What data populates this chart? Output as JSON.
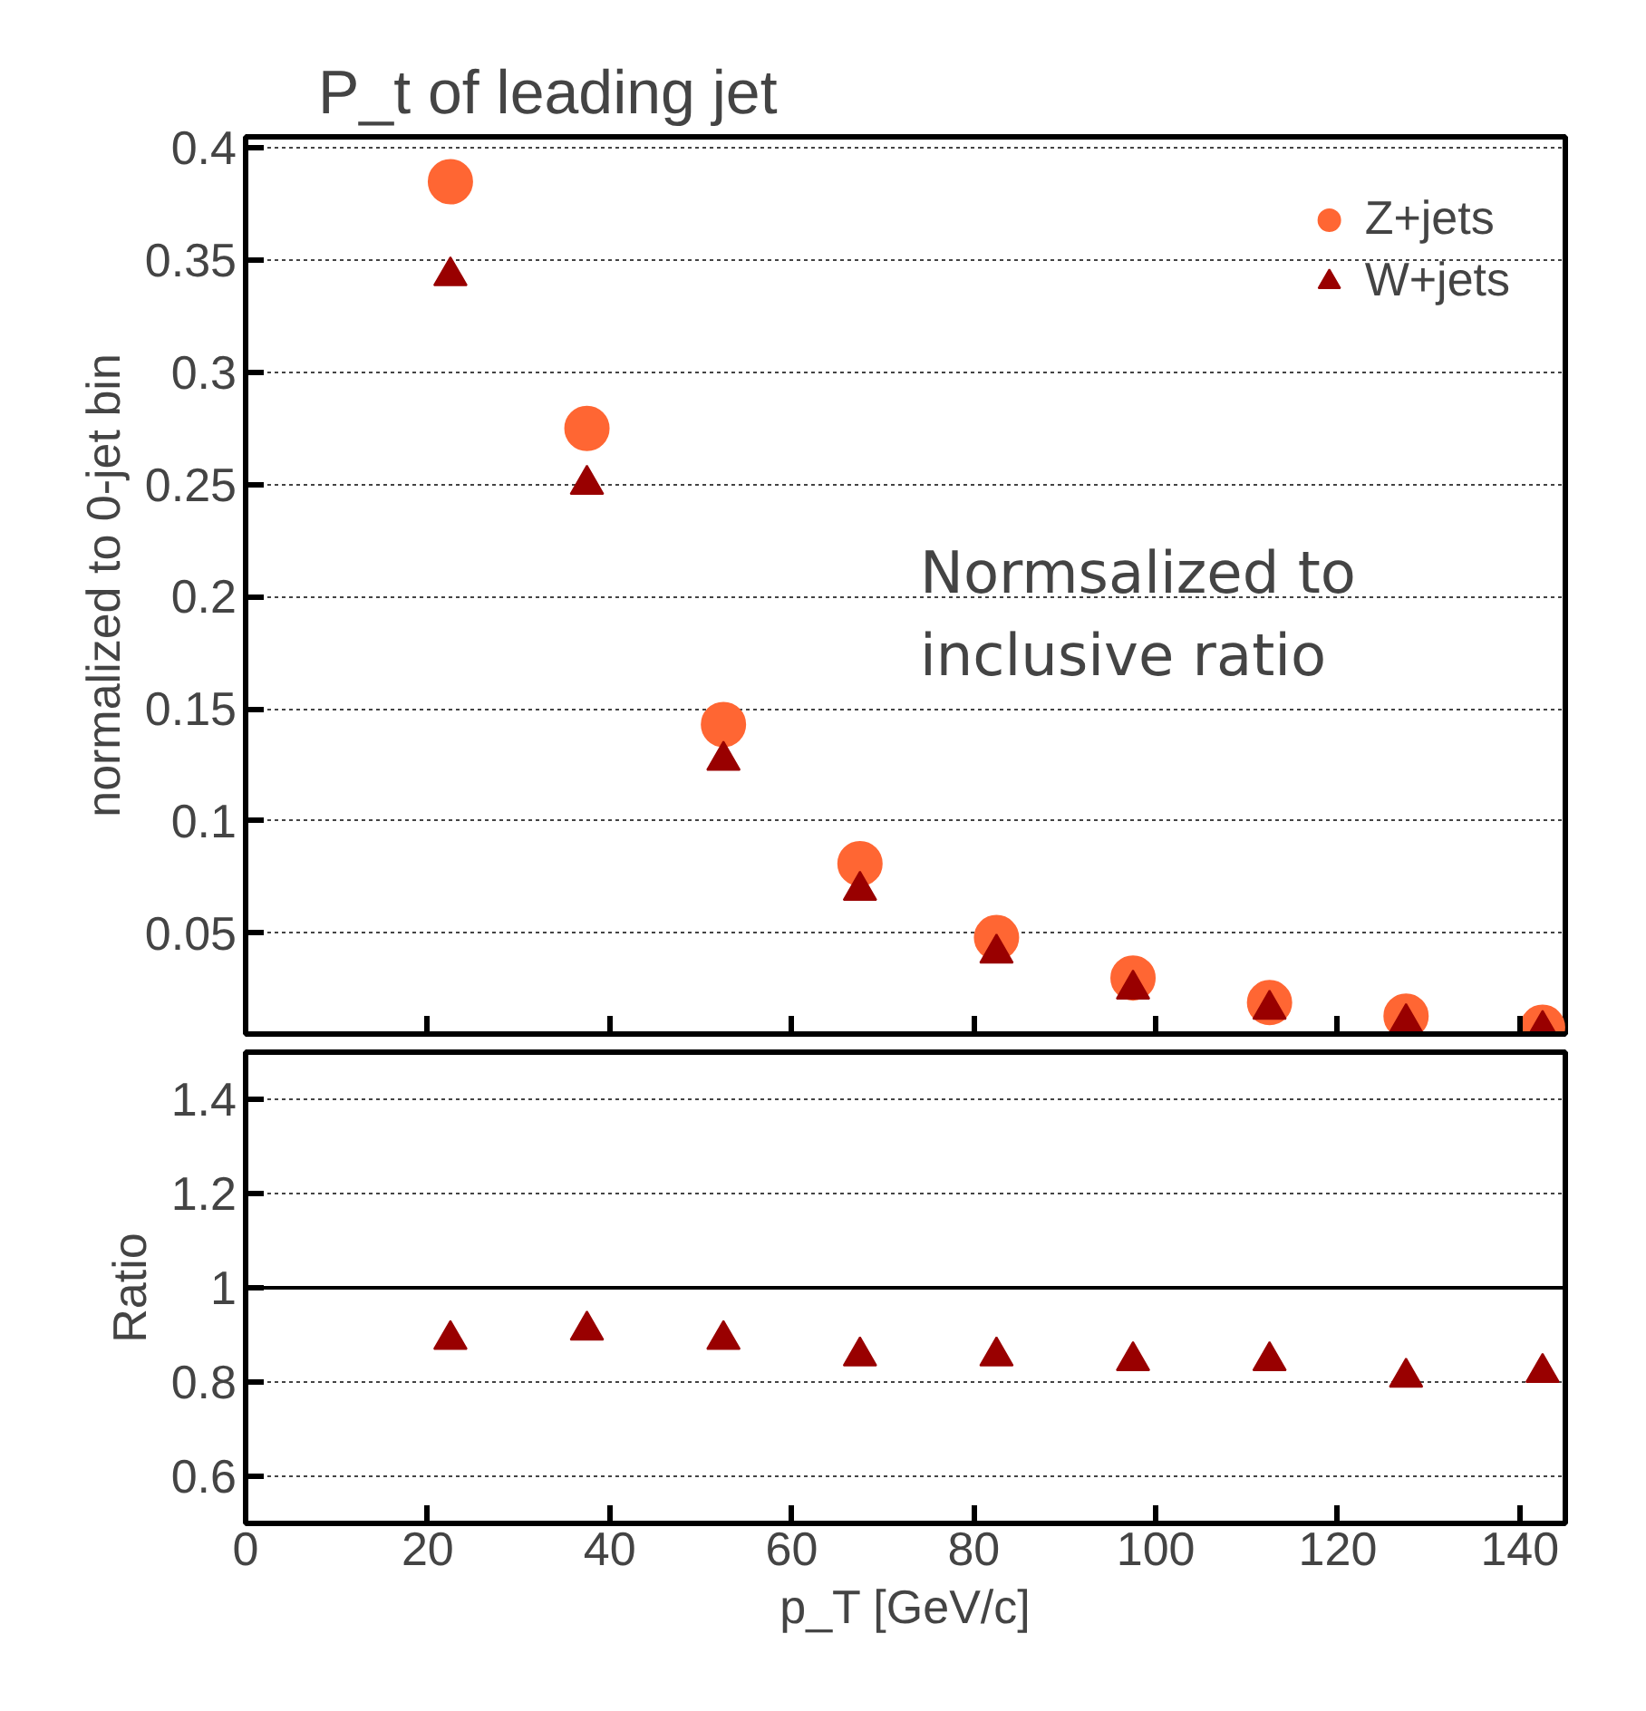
{
  "chart_data": [
    {
      "type": "scatter",
      "title": "P_t of leading jet",
      "ylabel": "normalized to 0-jet bin",
      "x": [
        22.5,
        37.5,
        52.5,
        67.5,
        82.5,
        97.5,
        112.5,
        127.5,
        142.5
      ],
      "series": [
        {
          "name": "Z+jets",
          "color": "#ff6633",
          "marker": "circle",
          "values": [
            0.385,
            0.275,
            0.143,
            0.081,
            0.048,
            0.03,
            0.019,
            0.013,
            0.008
          ]
        },
        {
          "name": "W+jets",
          "color": "#990000",
          "marker": "triangle",
          "values": [
            0.343,
            0.25,
            0.127,
            0.069,
            0.041,
            0.025,
            0.016,
            0.01,
            0.007
          ]
        }
      ],
      "xlim": [
        0,
        145
      ],
      "xticks": [
        0,
        20,
        40,
        60,
        80,
        100,
        120,
        140
      ],
      "ylim": [
        0.005,
        0.405
      ],
      "yticks": [
        0.05,
        0.1,
        0.15,
        0.2,
        0.25,
        0.3,
        0.35,
        0.4
      ],
      "grid": "y",
      "legend": "top right",
      "tick_labels": "y",
      "annotations": [
        "Normsalized to\ninclusive ratio"
      ]
    },
    {
      "type": "scatter",
      "xlabel": "p_T [GeV/c]",
      "ylabel": "Ratio",
      "x": [
        22.5,
        37.5,
        52.5,
        67.5,
        82.5,
        97.5,
        112.5,
        127.5,
        142.5
      ],
      "series": [
        {
          "color": "#990000",
          "marker": "triangle",
          "values": [
            0.89,
            0.91,
            0.89,
            0.855,
            0.855,
            0.845,
            0.845,
            0.81,
            0.82
          ]
        }
      ],
      "xlim": [
        0,
        145
      ],
      "xticks": [
        0,
        20,
        40,
        60,
        80,
        100,
        120,
        140
      ],
      "ylim": [
        0.5,
        1.5
      ],
      "yticks": [
        0.6,
        0.8,
        1,
        1.2,
        1.4
      ],
      "grid": "y",
      "ref_lines": [
        {
          "axis": "y",
          "value": 1,
          "color": "#000000"
        }
      ]
    }
  ]
}
